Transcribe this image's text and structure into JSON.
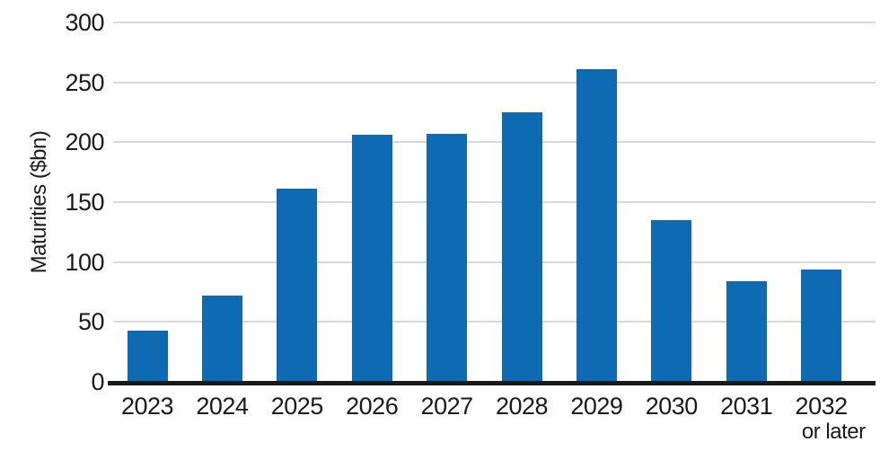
{
  "chart_data": {
    "type": "bar",
    "title": "",
    "xlabel": "",
    "ylabel": "Maturities ($bn)",
    "ylim": [
      0,
      300
    ],
    "yticks": [
      0,
      50,
      100,
      150,
      200,
      250,
      300
    ],
    "grid": true,
    "legend": "none",
    "categories": [
      "2023",
      "2024",
      "2025",
      "2026",
      "2027",
      "2028",
      "2029",
      "2030",
      "2031",
      "2032\nor later"
    ],
    "values": [
      43,
      72,
      161,
      206,
      207,
      225,
      261,
      135,
      84,
      94
    ],
    "colors": {
      "bar": "#0f6ab4",
      "gridline": "#d8d8d8",
      "axis": "#1a1a1a",
      "text": "#1a1a1a"
    }
  }
}
